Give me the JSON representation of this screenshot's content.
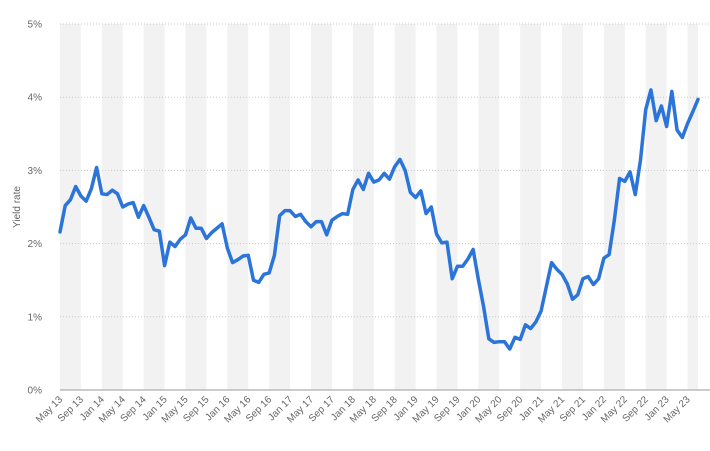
{
  "chart_data": {
    "type": "line",
    "title": "",
    "xlabel": "",
    "ylabel": "Yield rate",
    "ylim": [
      0,
      5
    ],
    "yticks": [
      "0%",
      "1%",
      "2%",
      "3%",
      "4%",
      "5%"
    ],
    "xticks": [
      "May 13",
      "Sep 13",
      "Jan 14",
      "May 14",
      "Sep 14",
      "Jan 15",
      "May 15",
      "Sep 15",
      "Jan 16",
      "May 16",
      "Sep 16",
      "Jan 17",
      "May 17",
      "Sep 17",
      "Jan 18",
      "May 18",
      "Sep 18",
      "Jan 19",
      "May 19",
      "Sep 19",
      "Jan 20",
      "May 20",
      "Sep 20",
      "Jan 21",
      "May 21",
      "Sep 21",
      "Jan 22",
      "May 22",
      "Sep 22",
      "Jan 23",
      "May 23"
    ],
    "grid": true,
    "colors": {
      "line": "#2b74d9",
      "band": "#f2f2f2",
      "grid": "#c8c8c8"
    },
    "series": [
      {
        "values": [
          2.16,
          2.52,
          2.6,
          2.78,
          2.65,
          2.58,
          2.75,
          3.04,
          2.68,
          2.67,
          2.73,
          2.68,
          2.5,
          2.54,
          2.56,
          2.36,
          2.52,
          2.36,
          2.19,
          2.17,
          1.7,
          2.02,
          1.96,
          2.06,
          2.12,
          2.35,
          2.21,
          2.21,
          2.07,
          2.15,
          2.21,
          2.27,
          1.94,
          1.74,
          1.78,
          1.83,
          1.84,
          1.5,
          1.47,
          1.58,
          1.6,
          1.84,
          2.38,
          2.45,
          2.45,
          2.37,
          2.4,
          2.3,
          2.23,
          2.3,
          2.3,
          2.12,
          2.32,
          2.37,
          2.41,
          2.4,
          2.74,
          2.87,
          2.74,
          2.96,
          2.84,
          2.87,
          2.96,
          2.88,
          3.05,
          3.15,
          3.0,
          2.7,
          2.63,
          2.72,
          2.41,
          2.5,
          2.13,
          2.01,
          2.02,
          1.52,
          1.69,
          1.69,
          1.79,
          1.92,
          1.51,
          1.14,
          0.7,
          0.65,
          0.66,
          0.66,
          0.56,
          0.72,
          0.69,
          0.89,
          0.84,
          0.93,
          1.08,
          1.41,
          1.74,
          1.65,
          1.58,
          1.45,
          1.24,
          1.3,
          1.52,
          1.55,
          1.44,
          1.52,
          1.8,
          1.85,
          2.32,
          2.89,
          2.85,
          2.98,
          2.67,
          3.14,
          3.83,
          4.1,
          3.68,
          3.88,
          3.6,
          4.08,
          3.55,
          3.45,
          3.64,
          3.8,
          3.97
        ]
      }
    ]
  }
}
